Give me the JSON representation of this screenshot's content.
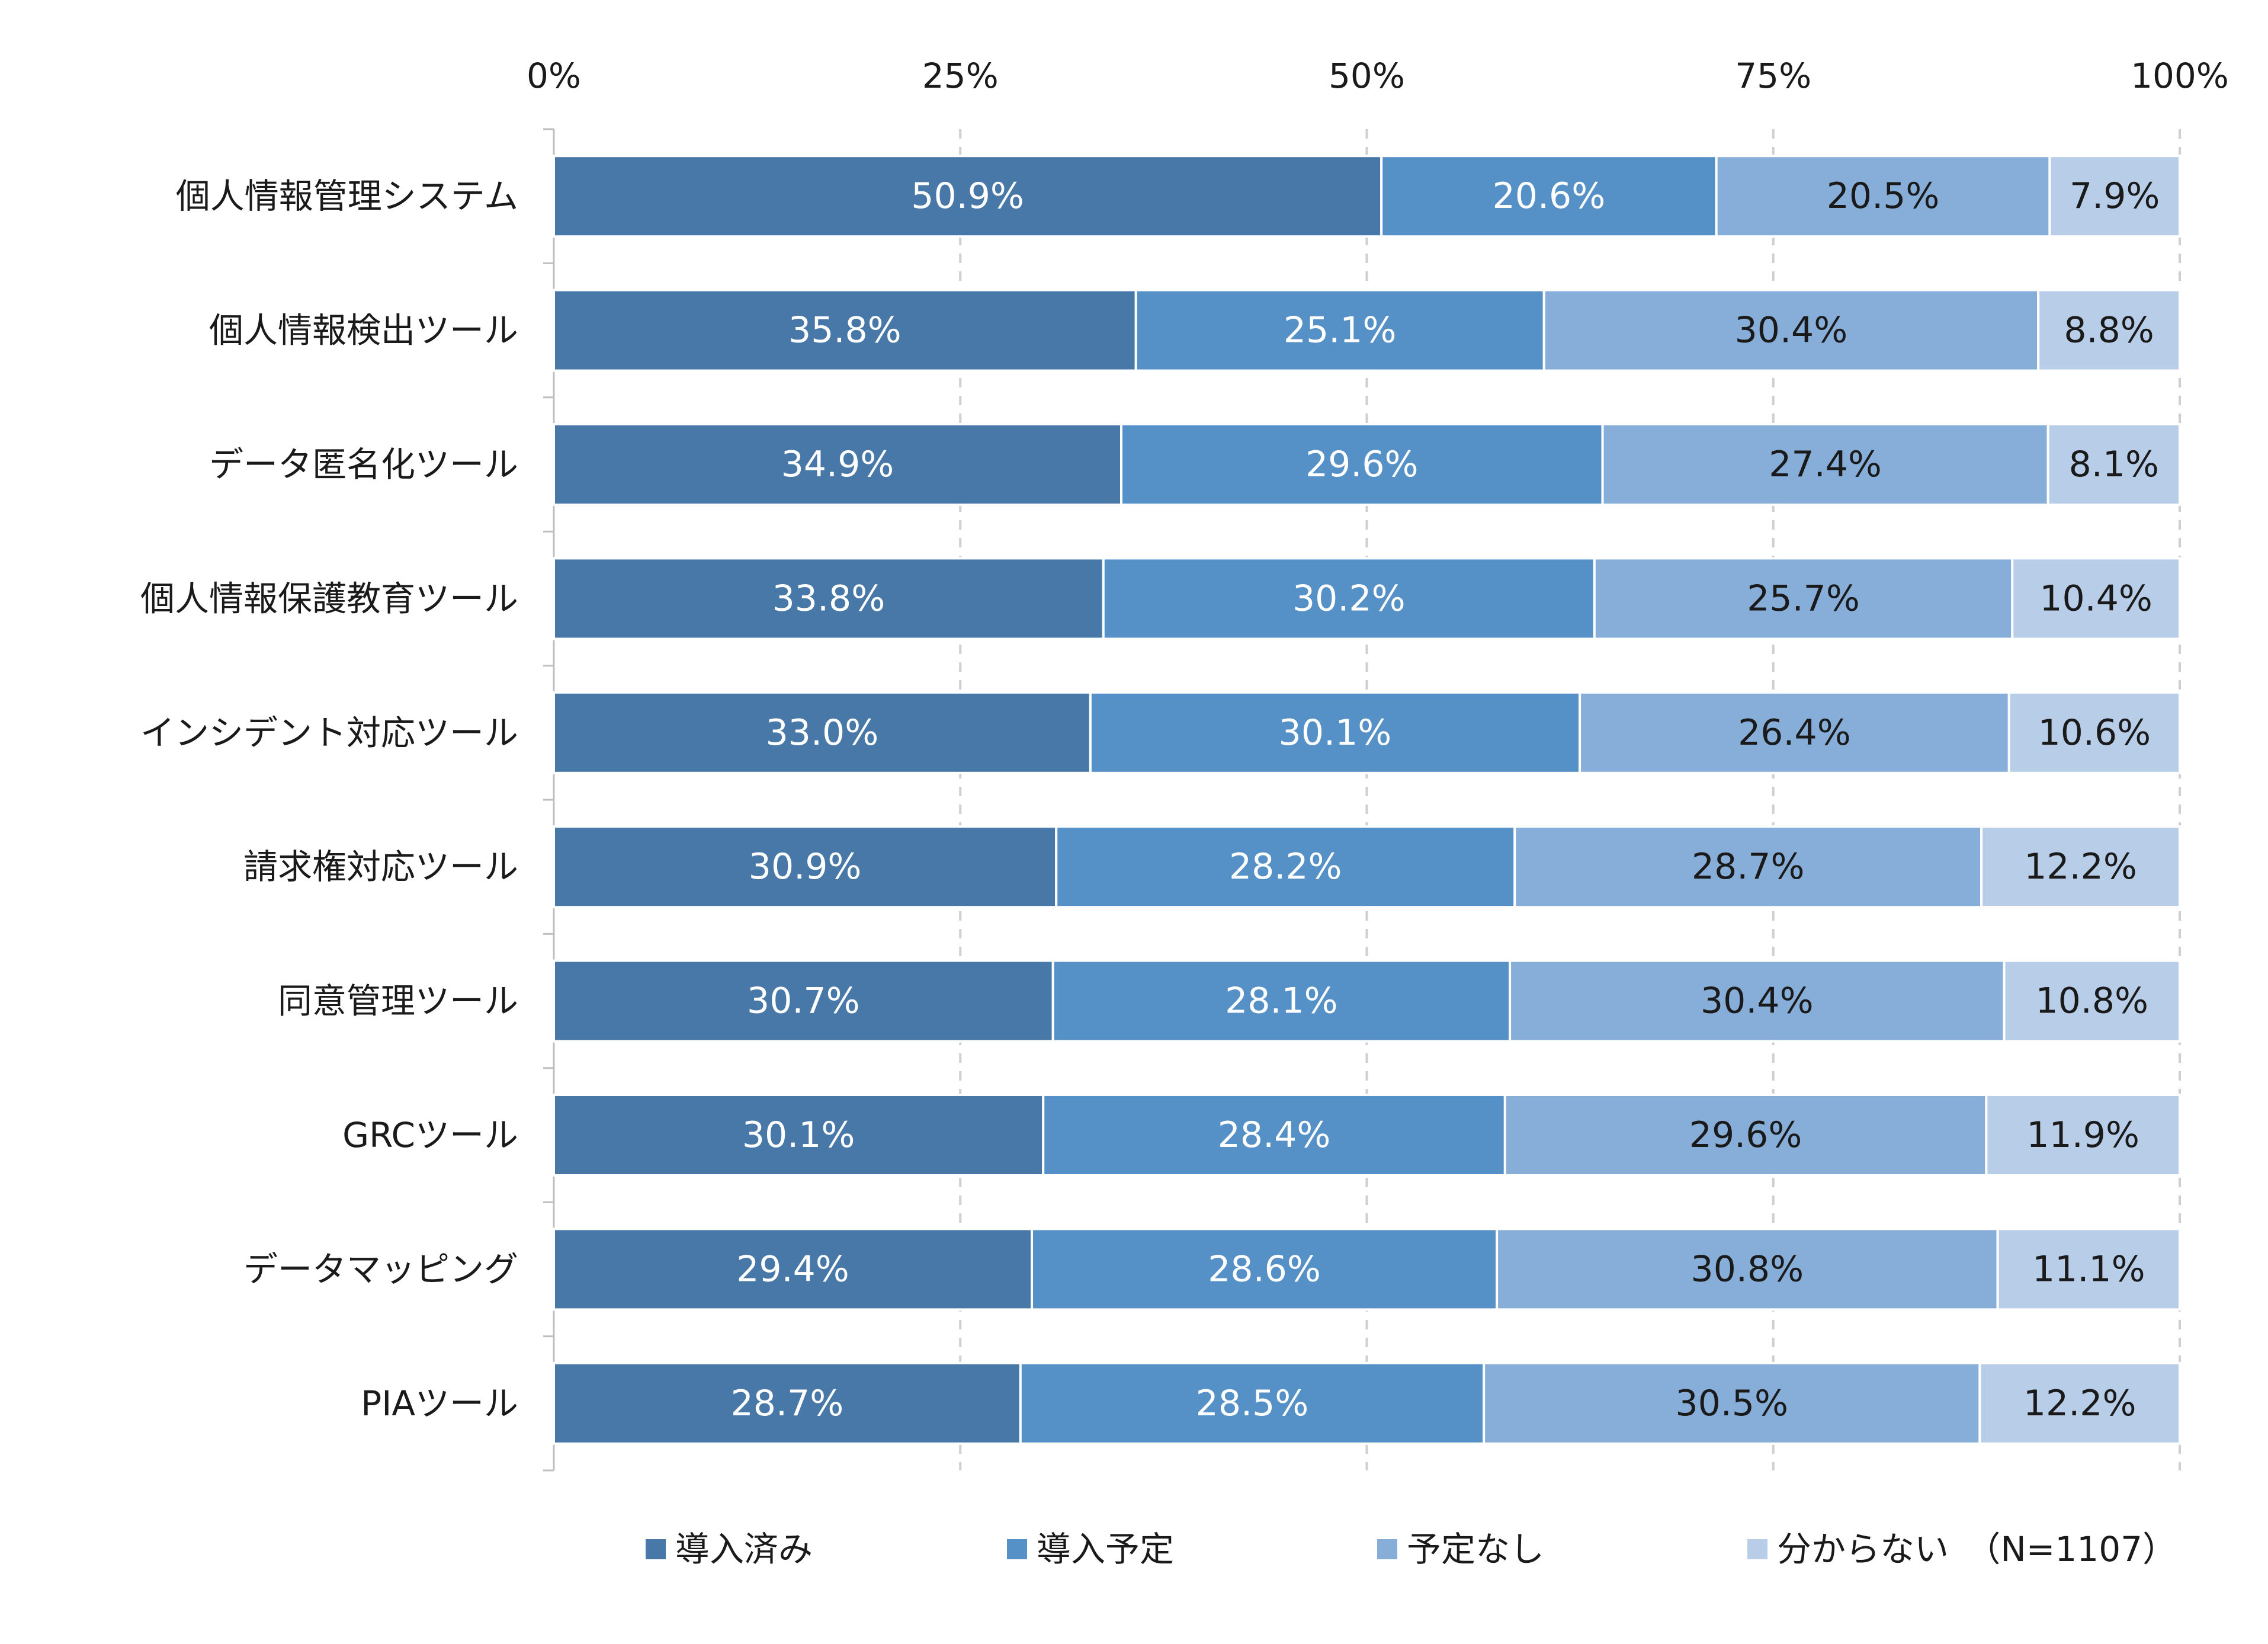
{
  "chart_data": {
    "type": "bar",
    "orientation": "horizontal",
    "stacked": "percent",
    "categories": [
      "個人情報管理システム",
      "個人情報検出ツール",
      "データ匿名化ツール",
      "個人情報保護教育ツール",
      "インシデント対応ツール",
      "請求権対応ツール",
      "同意管理ツール",
      "GRCツール",
      "データマッピング",
      "PIAツール"
    ],
    "series": [
      {
        "name": "導入済み",
        "color": "#4778a8",
        "label_color": "#ffffff",
        "values": [
          50.9,
          35.8,
          34.9,
          33.8,
          33.0,
          30.9,
          30.7,
          30.1,
          29.4,
          28.7
        ]
      },
      {
        "name": "導入予定",
        "color": "#5590c7",
        "label_color": "#ffffff",
        "values": [
          20.6,
          25.1,
          29.6,
          30.2,
          30.1,
          28.2,
          28.1,
          28.4,
          28.6,
          28.5
        ]
      },
      {
        "name": "予定なし",
        "color": "#87add9",
        "label_color": "#1a1a1a",
        "values": [
          20.5,
          30.4,
          27.4,
          25.7,
          26.4,
          28.7,
          30.4,
          29.6,
          30.8,
          30.5
        ]
      },
      {
        "name": "分からない",
        "color": "#b8cde8",
        "label_color": "#1a1a1a",
        "values": [
          7.9,
          8.8,
          8.1,
          10.4,
          10.6,
          12.2,
          10.8,
          11.9,
          11.1,
          12.2
        ]
      }
    ],
    "data_labels": [
      [
        "50.9%",
        "20.6%",
        "20.5%",
        "7.9%"
      ],
      [
        "35.8%",
        "25.1%",
        "30.4%",
        "8.8%"
      ],
      [
        "34.9%",
        "29.6%",
        "27.4%",
        "8.1%"
      ],
      [
        "33.8%",
        "30.2%",
        "25.7%",
        "10.4%"
      ],
      [
        "33.0%",
        "30.1%",
        "26.4%",
        "10.6%"
      ],
      [
        "30.9%",
        "28.2%",
        "28.7%",
        "12.2%"
      ],
      [
        "30.7%",
        "28.1%",
        "30.4%",
        "10.8%"
      ],
      [
        "30.1%",
        "28.4%",
        "29.6%",
        "11.9%"
      ],
      [
        "29.4%",
        "28.6%",
        "30.8%",
        "11.1%"
      ],
      [
        "28.7%",
        "28.5%",
        "30.5%",
        "12.2%"
      ]
    ],
    "x_ticks": [
      0,
      25,
      50,
      75,
      100
    ],
    "x_tick_labels": [
      "0%",
      "25%",
      "50%",
      "75%",
      "100%"
    ],
    "xlim": [
      0,
      100
    ],
    "axis_position": "top",
    "grid": "vertical-dashed",
    "legend_position": "bottom",
    "note": "（N=1107）",
    "title": "",
    "xlabel": "",
    "ylabel": ""
  }
}
